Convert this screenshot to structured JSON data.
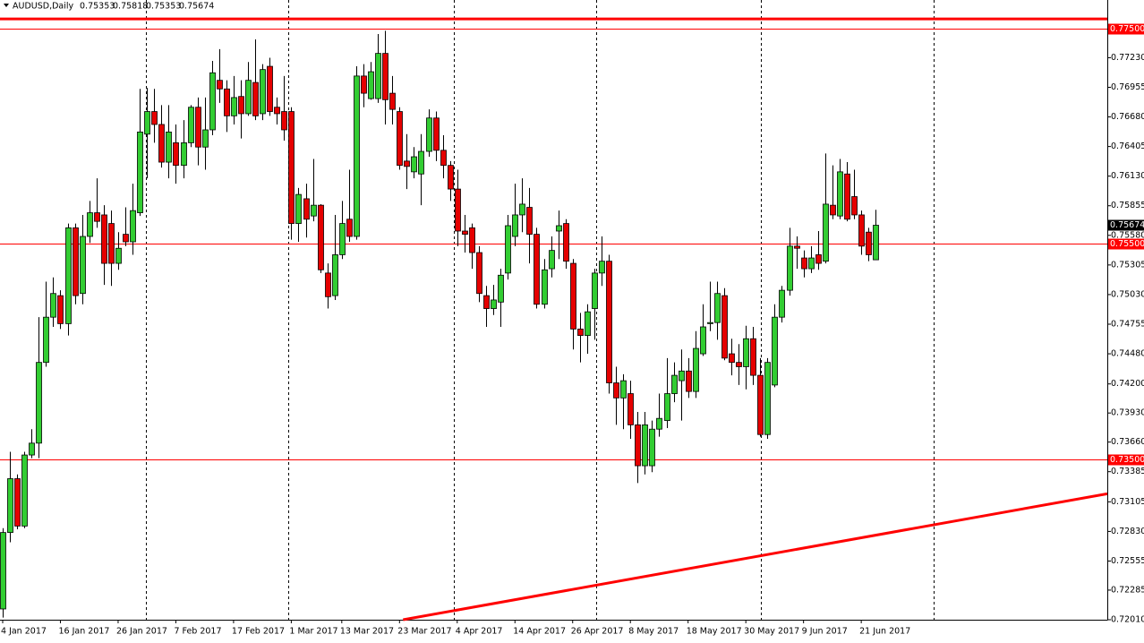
{
  "chart_data": {
    "type": "candlestick",
    "title": "AUDUSD,Daily",
    "categories": [
      "4 Jan 2017",
      null,
      null,
      null,
      null,
      null,
      null,
      null,
      "16 Jan 2017",
      null,
      null,
      null,
      null,
      null,
      null,
      null,
      "26 Jan 2017",
      null,
      null,
      null,
      null,
      null,
      null,
      null,
      "7 Feb 2017",
      null,
      null,
      null,
      null,
      null,
      null,
      null,
      "17 Feb 2017",
      null,
      null,
      null,
      null,
      null,
      null,
      null,
      "1 Mar 2017",
      null,
      null,
      null,
      null,
      null,
      null,
      "13 Mar 2017",
      null,
      null,
      null,
      null,
      null,
      null,
      null,
      "23 Mar 2017",
      null,
      null,
      null,
      null,
      null,
      null,
      null,
      "4 Apr 2017",
      null,
      null,
      null,
      null,
      null,
      null,
      null,
      "14 Apr 2017",
      null,
      null,
      null,
      null,
      null,
      null,
      null,
      "26 Apr 2017",
      null,
      null,
      null,
      null,
      null,
      null,
      null,
      "8 May 2017",
      null,
      null,
      null,
      null,
      null,
      null,
      null,
      "18 May 2017",
      null,
      null,
      null,
      null,
      null,
      null,
      null,
      "30 May 2017",
      null,
      null,
      null,
      null,
      null,
      null,
      null,
      "9 Jun 2017",
      null,
      null,
      null,
      null,
      null,
      null,
      null,
      "21 Jun 2017",
      null,
      null
    ],
    "series": [
      {
        "name": "open",
        "values": [
          0.7211,
          0.7282,
          0.7332,
          0.7288,
          0.7354,
          0.7365,
          0.744,
          0.7482,
          0.7502,
          0.7476,
          0.7565,
          0.7504,
          0.7557,
          0.7579,
          0.7577,
          0.7569,
          0.7532,
          0.7559,
          0.7552,
          0.7579,
          0.7652,
          0.7673,
          0.7661,
          0.7626,
          0.7644,
          0.7623,
          0.7644,
          0.7677,
          0.764,
          0.7656,
          0.7702,
          0.7694,
          0.7669,
          0.7687,
          0.7671,
          0.77,
          0.7671,
          0.7715,
          0.7677,
          0.7673,
          0.7673,
          0.7569,
          0.7592,
          0.7576,
          0.7586,
          0.7523,
          0.7502,
          0.754,
          0.7573,
          0.7557,
          0.7706,
          0.7685,
          0.7685,
          0.7727,
          0.769,
          0.7673,
          0.7627,
          0.7617,
          0.7615,
          0.7636,
          0.7667,
          0.7637,
          0.7623,
          0.7601,
          0.7562,
          0.7565,
          0.7542,
          0.7502,
          0.749,
          0.7496,
          0.7523,
          0.7557,
          0.7577,
          0.7584,
          0.7559,
          0.7494,
          0.7527,
          0.7562,
          0.7569,
          0.7532,
          0.7471,
          0.7465,
          0.749,
          0.7523,
          0.7534,
          0.7421,
          0.7407,
          0.7411,
          0.7382,
          0.7344,
          0.7344,
          0.7378,
          0.7386,
          0.7411,
          0.7423,
          0.7432,
          0.7413,
          0.7448,
          0.7476,
          0.7477,
          0.7502,
          0.7448,
          0.744,
          0.7436,
          0.7462,
          0.7428,
          0.7373,
          0.7419,
          0.7482,
          0.7507,
          0.7548,
          0.7537,
          0.7527,
          0.754,
          0.7534,
          0.7586,
          0.7576,
          0.7615,
          0.7594,
          0.7577,
          0.7561,
          0.75353
        ]
      },
      {
        "name": "high",
        "values": [
          0.7286,
          0.7357,
          0.7336,
          0.7357,
          0.7378,
          0.7482,
          0.7515,
          0.7519,
          0.7507,
          0.7569,
          0.7569,
          0.7577,
          0.759,
          0.7611,
          0.7586,
          0.7581,
          0.7561,
          0.7584,
          0.7606,
          0.7694,
          0.7695,
          0.7694,
          0.7679,
          0.7679,
          0.7661,
          0.7665,
          0.7679,
          0.7686,
          0.7686,
          0.772,
          0.7731,
          0.7702,
          0.7706,
          0.7702,
          0.7719,
          0.774,
          0.7717,
          0.7723,
          0.7686,
          0.7706,
          0.7677,
          0.7602,
          0.7606,
          0.7629,
          0.7587,
          0.7532,
          0.7577,
          0.759,
          0.7619,
          0.7715,
          0.7717,
          0.7719,
          0.7745,
          0.7748,
          0.7706,
          0.7677,
          0.7652,
          0.764,
          0.7652,
          0.7675,
          0.7673,
          0.7651,
          0.7627,
          0.7619,
          0.7577,
          0.7569,
          0.7548,
          0.7511,
          0.7512,
          0.7527,
          0.7577,
          0.7606,
          0.7611,
          0.7602,
          0.7565,
          0.7536,
          0.7557,
          0.7581,
          0.7573,
          0.7536,
          0.7486,
          0.7494,
          0.7527,
          0.7557,
          0.754,
          0.7436,
          0.7429,
          0.7423,
          0.7394,
          0.7394,
          0.7386,
          0.7411,
          0.7444,
          0.744,
          0.7452,
          0.7444,
          0.7469,
          0.7494,
          0.7515,
          0.7515,
          0.7509,
          0.7462,
          0.7457,
          0.7474,
          0.7473,
          0.7444,
          0.7444,
          0.7494,
          0.7511,
          0.7565,
          0.7557,
          0.7544,
          0.7548,
          0.7562,
          0.7634,
          0.7623,
          0.7629,
          0.7626,
          0.7619,
          0.7581,
          0.7565,
          0.75818
        ]
      },
      {
        "name": "low",
        "values": [
          0.7203,
          0.7273,
          0.7285,
          0.7286,
          0.7351,
          0.7351,
          0.7436,
          0.7473,
          0.7471,
          0.7465,
          0.7494,
          0.7494,
          0.7551,
          0.7565,
          0.7512,
          0.7511,
          0.7526,
          0.7548,
          0.754,
          0.7576,
          0.7611,
          0.7644,
          0.7621,
          0.7611,
          0.7606,
          0.7611,
          0.764,
          0.7623,
          0.7619,
          0.7651,
          0.7681,
          0.7654,
          0.7661,
          0.7648,
          0.7669,
          0.7665,
          0.7665,
          0.7669,
          0.7661,
          0.7646,
          0.7554,
          0.7552,
          0.7556,
          0.7571,
          0.7523,
          0.749,
          0.7498,
          0.7536,
          0.7552,
          0.7554,
          0.7677,
          0.7684,
          0.7681,
          0.7661,
          0.7661,
          0.7619,
          0.7601,
          0.7611,
          0.7586,
          0.7631,
          0.7627,
          0.7611,
          0.759,
          0.7548,
          0.7542,
          0.7527,
          0.7496,
          0.7473,
          0.7484,
          0.7473,
          0.7517,
          0.7548,
          0.7561,
          0.7532,
          0.749,
          0.749,
          0.7519,
          0.7536,
          0.7527,
          0.7452,
          0.744,
          0.7448,
          0.7461,
          0.7511,
          0.7411,
          0.7382,
          0.7378,
          0.7369,
          0.7328,
          0.7336,
          0.7338,
          0.7371,
          0.7379,
          0.7403,
          0.7386,
          0.7407,
          0.7407,
          0.7446,
          0.7469,
          0.7461,
          0.7442,
          0.7428,
          0.7419,
          0.7415,
          0.7419,
          0.7371,
          0.7369,
          0.7417,
          0.7477,
          0.7502,
          0.7527,
          0.7519,
          0.7523,
          0.7526,
          0.7532,
          0.7573,
          0.7573,
          0.7571,
          0.7573,
          0.754,
          0.7534,
          0.75353
        ]
      },
      {
        "name": "close",
        "values": [
          0.7282,
          0.7332,
          0.7288,
          0.7354,
          0.7365,
          0.744,
          0.7482,
          0.7504,
          0.7476,
          0.7565,
          0.7502,
          0.7557,
          0.7579,
          0.7571,
          0.7532,
          0.7532,
          0.7546,
          0.7552,
          0.7581,
          0.7654,
          0.7673,
          0.7661,
          0.7626,
          0.7654,
          0.7623,
          0.7644,
          0.7677,
          0.764,
          0.7656,
          0.7709,
          0.7694,
          0.7669,
          0.7686,
          0.7671,
          0.7702,
          0.7669,
          0.7712,
          0.7673,
          0.7671,
          0.7656,
          0.7569,
          0.7596,
          0.7573,
          0.7586,
          0.7526,
          0.7501,
          0.754,
          0.7569,
          0.7557,
          0.7706,
          0.769,
          0.771,
          0.7727,
          0.7684,
          0.7675,
          0.7623,
          0.7622,
          0.7631,
          0.7636,
          0.7667,
          0.7637,
          0.7623,
          0.7601,
          0.7562,
          0.7559,
          0.7542,
          0.7504,
          0.749,
          0.7498,
          0.7521,
          0.7567,
          0.7577,
          0.7587,
          0.7559,
          0.7494,
          0.7526,
          0.7544,
          0.7567,
          0.7534,
          0.7471,
          0.7465,
          0.7487,
          0.7523,
          0.7534,
          0.7421,
          0.7407,
          0.7423,
          0.7382,
          0.7344,
          0.7382,
          0.7378,
          0.7388,
          0.7411,
          0.7428,
          0.7432,
          0.7413,
          0.7453,
          0.7473,
          0.7477,
          0.7504,
          0.7444,
          0.744,
          0.7436,
          0.7462,
          0.7428,
          0.7373,
          0.744,
          0.7482,
          0.7507,
          0.7548,
          0.7546,
          0.7527,
          0.7537,
          0.7532,
          0.7587,
          0.7577,
          0.7617,
          0.7573,
          0.7577,
          0.7548,
          0.754,
          0.75674
        ]
      }
    ],
    "up_color": "#32cd32",
    "down_color": "#e50000",
    "wick_color": "#000000",
    "ylim": [
      0.7201,
      0.77766
    ],
    "yticks": [
      {
        "value": 0.7201,
        "label": "0.72010"
      },
      0.72285,
      0.72555,
      {
        "value": 0.7283,
        "label": "0.72830"
      },
      0.73105,
      0.73385,
      {
        "value": 0.7366,
        "label": "0.73660"
      },
      {
        "value": 0.7393,
        "label": "0.73930"
      },
      {
        "value": 0.742,
        "label": "0.74200"
      },
      {
        "value": 0.7448,
        "label": "0.74480"
      },
      0.74755,
      {
        "value": 0.7503,
        "label": "0.75030"
      },
      0.75305,
      {
        "value": 0.7558,
        "label": "0.75580"
      },
      0.75855,
      {
        "value": 0.7613,
        "label": "0.76130"
      },
      0.76405,
      {
        "value": 0.7668,
        "label": "0.76680"
      },
      0.76955,
      {
        "value": 0.7723,
        "label": "0.77230"
      }
    ],
    "levels": [
      {
        "value": 0.775,
        "label": "0.77500"
      },
      {
        "value": 0.755,
        "label": "0.75500"
      },
      {
        "value": 0.735,
        "label": "0.73500"
      }
    ],
    "level_color": "#ff0000",
    "resistance": 0.7759,
    "trendline": {
      "x": [
        55.5,
        153.1
      ],
      "y": [
        0.7201,
        0.7318
      ]
    }
  }
}
